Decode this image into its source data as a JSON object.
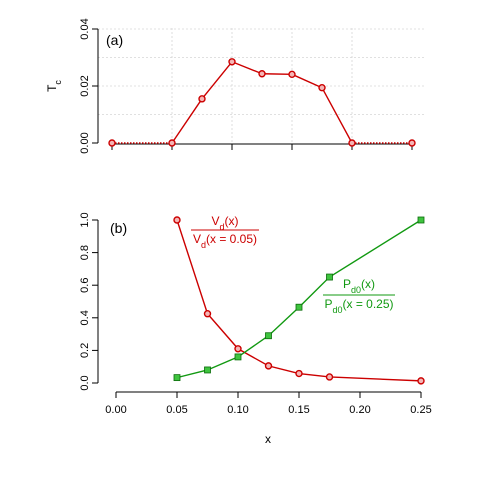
{
  "chart_data": [
    {
      "panel_label": "(a)",
      "type": "line",
      "ylabel": "T",
      "ylabel_sub": "c",
      "ylim": [
        0,
        0.04
      ],
      "yticks": [
        "0.00",
        "0.02",
        "0.04"
      ],
      "xlim": [
        0,
        0.25
      ],
      "x_tick_labels_shown": false,
      "grid": true,
      "color": "#cc0000",
      "series": [
        {
          "x": [
            0.0,
            0.05,
            0.075,
            0.1,
            0.125,
            0.15,
            0.175,
            0.2,
            0.25
          ],
          "y": [
            0.0,
            0.0,
            0.0155,
            0.0285,
            0.0243,
            0.0241,
            0.0194,
            0.0,
            0.0
          ],
          "dotted_segments": [
            [
              0,
              1
            ],
            [
              7,
              8
            ]
          ]
        }
      ]
    },
    {
      "panel_label": "(b)",
      "type": "line",
      "xlabel": "x",
      "xlim": [
        0,
        0.25
      ],
      "xticks": [
        "0.00",
        "0.05",
        "0.10",
        "0.15",
        "0.20",
        "0.25"
      ],
      "ylim": [
        0,
        1.0
      ],
      "yticks": [
        "0.0",
        "0.2",
        "0.4",
        "0.6",
        "0.8",
        "1.0"
      ],
      "grid": false,
      "series": [
        {
          "marker": "circle",
          "color": "#cc0000",
          "label": {
            "numerator": {
              "main": "V",
              "sub": "d",
              "rest": "(x)"
            },
            "denominator": {
              "main": "V",
              "sub": "d",
              "rest": "(x = 0.05)"
            }
          },
          "x": [
            0.05,
            0.075,
            0.1,
            0.125,
            0.15,
            0.175,
            0.25
          ],
          "y": [
            1.0,
            0.425,
            0.21,
            0.105,
            0.058,
            0.037,
            0.013
          ]
        },
        {
          "marker": "square",
          "color": "#119911",
          "label": {
            "numerator": {
              "main": "P",
              "sub": "d0",
              "rest": "(x)"
            },
            "denominator": {
              "main": "P",
              "sub": "d0",
              "rest": "(x = 0.25)"
            }
          },
          "x": [
            0.05,
            0.075,
            0.1,
            0.125,
            0.15,
            0.175,
            0.25
          ],
          "y": [
            0.033,
            0.08,
            0.16,
            0.29,
            0.465,
            0.65,
            1.0
          ]
        }
      ]
    }
  ]
}
